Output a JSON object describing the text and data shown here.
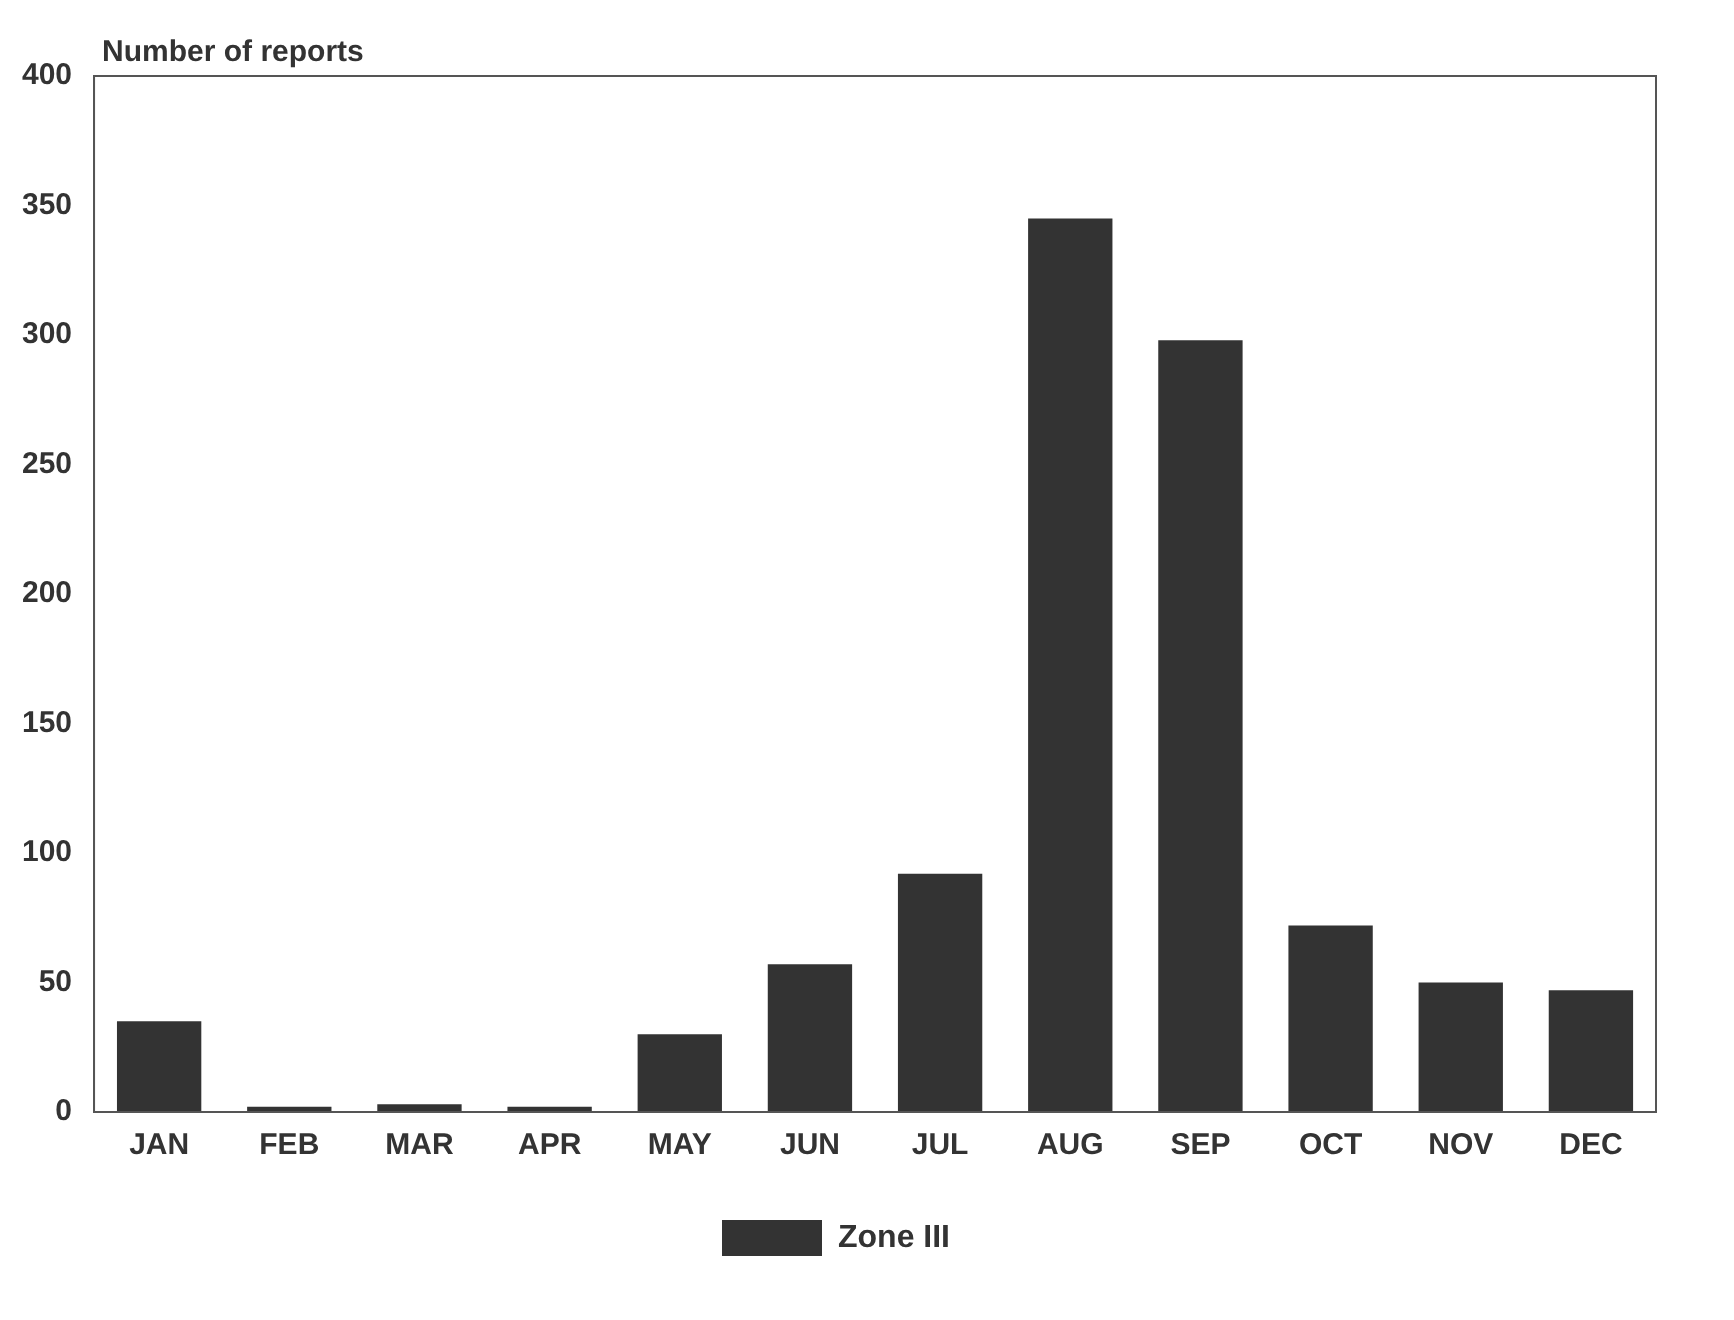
{
  "chart_data": {
    "type": "bar",
    "ylabel": "Number of reports",
    "categories": [
      "JAN",
      "FEB",
      "MAR",
      "APR",
      "MAY",
      "JUN",
      "JUL",
      "AUG",
      "SEP",
      "OCT",
      "NOV",
      "DEC"
    ],
    "series": [
      {
        "name": "Zone III",
        "color": "#333333",
        "values": [
          35,
          2,
          3,
          2,
          30,
          57,
          92,
          345,
          298,
          72,
          50,
          47
        ]
      }
    ],
    "ylim": [
      0,
      400
    ],
    "yticks": [
      0,
      50,
      100,
      150,
      200,
      250,
      300,
      350,
      400
    ],
    "grid": false,
    "legend": "bottom"
  }
}
